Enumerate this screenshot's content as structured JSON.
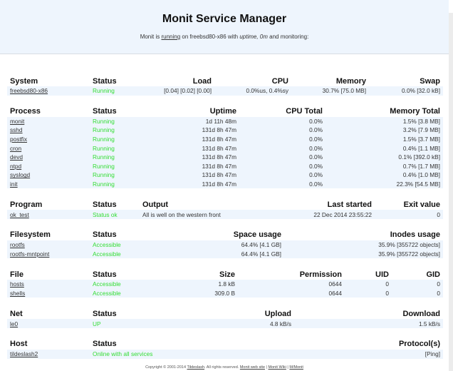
{
  "header": {
    "title": "Monit Service Manager",
    "sub_prefix": "Monit is ",
    "sub_state": "running",
    "sub_mid": " on freebsd80-x86 with ",
    "sub_uptime_label": "uptime, 0m",
    "sub_suffix": "  and monitoring:"
  },
  "colors": {
    "header_bg": "#eef5fd",
    "status_ok": "#33dd33",
    "row_stripe": "#eef5fd"
  },
  "system": {
    "headers": [
      "System",
      "Status",
      "Load",
      "CPU",
      "Memory",
      "Swap"
    ],
    "rows": [
      [
        "freebsd80-x86",
        "Running",
        "[0.04] [0.02] [0.00]",
        "0.0%us, 0.4%sy",
        "30.7% [75.0 MB]",
        "0.0% [32.0 kB]"
      ]
    ]
  },
  "process": {
    "headers": [
      "Process",
      "Status",
      "Uptime",
      "CPU Total",
      "Memory Total"
    ],
    "rows": [
      [
        "monit",
        "Running",
        "1d 11h 48m",
        "0.0%",
        "1.5% [3.8 MB]"
      ],
      [
        "sshd",
        "Running",
        "131d 8h 47m",
        "0.0%",
        "3.2% [7.9 MB]"
      ],
      [
        "postfix",
        "Running",
        "131d 8h 47m",
        "0.0%",
        "1.5% [3.7 MB]"
      ],
      [
        "cron",
        "Running",
        "131d 8h 47m",
        "0.0%",
        "0.4% [1.1 MB]"
      ],
      [
        "devd",
        "Running",
        "131d 8h 47m",
        "0.0%",
        "0.1% [392.0 kB]"
      ],
      [
        "ntpd",
        "Running",
        "131d 8h 47m",
        "0.0%",
        "0.7% [1.7 MB]"
      ],
      [
        "syslogd",
        "Running",
        "131d 8h 47m",
        "0.0%",
        "0.4% [1.0 MB]"
      ],
      [
        "init",
        "Running",
        "131d 8h 47m",
        "0.0%",
        "22.3% [54.5 MB]"
      ]
    ]
  },
  "program": {
    "headers": [
      "Program",
      "Status",
      "Output",
      "Last started",
      "Exit value"
    ],
    "rows": [
      [
        "ok_test",
        "Status ok",
        "All is well on the western front",
        "22 Dec 2014 23:55:22",
        "0"
      ]
    ]
  },
  "filesystem": {
    "headers": [
      "Filesystem",
      "Status",
      "Space usage",
      "Inodes usage"
    ],
    "rows": [
      [
        "rootfs",
        "Accessible",
        "64.4% [4.1 GB]",
        "35.9% [355722 objects]"
      ],
      [
        "rootfs-mntpoint",
        "Accessible",
        "64.4% [4.1 GB]",
        "35.9% [355722 objects]"
      ]
    ]
  },
  "file": {
    "headers": [
      "File",
      "Status",
      "Size",
      "Permission",
      "UID",
      "GID"
    ],
    "rows": [
      [
        "hosts",
        "Accessible",
        "1.8 kB",
        "0644",
        "0",
        "0"
      ],
      [
        "shells",
        "Accessible",
        "309.0 B",
        "0644",
        "0",
        "0"
      ]
    ]
  },
  "net": {
    "headers": [
      "Net",
      "Status",
      "Upload",
      "Download"
    ],
    "rows": [
      [
        "le0",
        "UP",
        "4.8 kB/s",
        "1.5 kB/s"
      ]
    ]
  },
  "host": {
    "headers": [
      "Host",
      "Status",
      "Protocol(s)"
    ],
    "rows": [
      [
        "tildeslash2",
        "Online with all services",
        "[Ping]"
      ]
    ]
  },
  "footer": {
    "copyright": "Copyright © 2001-2014 ",
    "company": "Tildeslash",
    "rights": ". All rights reserved.  ",
    "link1": "Monit web site",
    "sep": " | ",
    "link2": "Monit Wiki",
    "link3": "M/Monit"
  }
}
